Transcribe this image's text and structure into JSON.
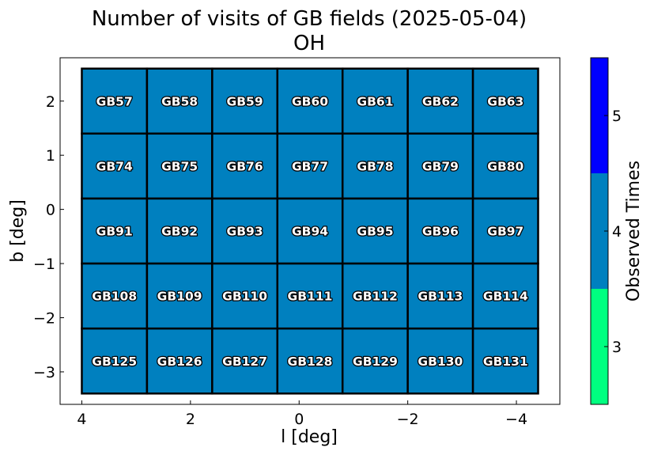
{
  "chart_data": {
    "type": "heatmap",
    "title": "Number of visits of GB fields (2025-05-04)",
    "subtitle": "OH",
    "xlabel": "l [deg]",
    "ylabel": "b [deg]",
    "xlim": [
      4.4,
      -4.8
    ],
    "ylim": [
      -3.6,
      2.8
    ],
    "x_reversed": true,
    "x_ticks": [
      4,
      2,
      0,
      -2,
      -4
    ],
    "x_tick_labels": [
      "4",
      "2",
      "0",
      "−2",
      "−4"
    ],
    "y_ticks": [
      2,
      1,
      0,
      -1,
      -2,
      -3
    ],
    "y_tick_labels": [
      "2",
      "1",
      "0",
      "−1",
      "−2",
      "−3"
    ],
    "grid": false,
    "cell_width": 1.2,
    "cell_height": 1.2,
    "cells": [
      {
        "name": "GB57",
        "l": 3.4,
        "b": 2.0,
        "value": 4
      },
      {
        "name": "GB58",
        "l": 2.2,
        "b": 2.0,
        "value": 4
      },
      {
        "name": "GB59",
        "l": 1.0,
        "b": 2.0,
        "value": 4
      },
      {
        "name": "GB60",
        "l": -0.2,
        "b": 2.0,
        "value": 4
      },
      {
        "name": "GB61",
        "l": -1.4,
        "b": 2.0,
        "value": 4
      },
      {
        "name": "GB62",
        "l": -2.6,
        "b": 2.0,
        "value": 4
      },
      {
        "name": "GB63",
        "l": -3.8,
        "b": 2.0,
        "value": 4
      },
      {
        "name": "GB74",
        "l": 3.4,
        "b": 0.8,
        "value": 4
      },
      {
        "name": "GB75",
        "l": 2.2,
        "b": 0.8,
        "value": 4
      },
      {
        "name": "GB76",
        "l": 1.0,
        "b": 0.8,
        "value": 4
      },
      {
        "name": "GB77",
        "l": -0.2,
        "b": 0.8,
        "value": 4
      },
      {
        "name": "GB78",
        "l": -1.4,
        "b": 0.8,
        "value": 4
      },
      {
        "name": "GB79",
        "l": -2.6,
        "b": 0.8,
        "value": 4
      },
      {
        "name": "GB80",
        "l": -3.8,
        "b": 0.8,
        "value": 4
      },
      {
        "name": "GB91",
        "l": 3.4,
        "b": -0.4,
        "value": 4
      },
      {
        "name": "GB92",
        "l": 2.2,
        "b": -0.4,
        "value": 4
      },
      {
        "name": "GB93",
        "l": 1.0,
        "b": -0.4,
        "value": 4
      },
      {
        "name": "GB94",
        "l": -0.2,
        "b": -0.4,
        "value": 4
      },
      {
        "name": "GB95",
        "l": -1.4,
        "b": -0.4,
        "value": 4
      },
      {
        "name": "GB96",
        "l": -2.6,
        "b": -0.4,
        "value": 4
      },
      {
        "name": "GB97",
        "l": -3.8,
        "b": -0.4,
        "value": 4
      },
      {
        "name": "GB108",
        "l": 3.4,
        "b": -1.6,
        "value": 4
      },
      {
        "name": "GB109",
        "l": 2.2,
        "b": -1.6,
        "value": 4
      },
      {
        "name": "GB110",
        "l": 1.0,
        "b": -1.6,
        "value": 4
      },
      {
        "name": "GB111",
        "l": -0.2,
        "b": -1.6,
        "value": 4
      },
      {
        "name": "GB112",
        "l": -1.4,
        "b": -1.6,
        "value": 4
      },
      {
        "name": "GB113",
        "l": -2.6,
        "b": -1.6,
        "value": 4
      },
      {
        "name": "GB114",
        "l": -3.8,
        "b": -1.6,
        "value": 4
      },
      {
        "name": "GB125",
        "l": 3.4,
        "b": -2.8,
        "value": 4
      },
      {
        "name": "GB126",
        "l": 2.2,
        "b": -2.8,
        "value": 4
      },
      {
        "name": "GB127",
        "l": 1.0,
        "b": -2.8,
        "value": 4
      },
      {
        "name": "GB128",
        "l": -0.2,
        "b": -2.8,
        "value": 4
      },
      {
        "name": "GB129",
        "l": -1.4,
        "b": -2.8,
        "value": 4
      },
      {
        "name": "GB130",
        "l": -2.6,
        "b": -2.8,
        "value": 4
      },
      {
        "name": "GB131",
        "l": -3.8,
        "b": -2.8,
        "value": 4
      }
    ],
    "colorbar": {
      "label": "Observed Times",
      "range": [
        2.5,
        5.5
      ],
      "ticks": [
        3,
        4,
        5
      ],
      "tick_labels": [
        "3",
        "4",
        "5"
      ],
      "bins": [
        {
          "from": 2.5,
          "to": 3.5,
          "value": 3,
          "color": "#00ff80"
        },
        {
          "from": 3.5,
          "to": 4.5,
          "value": 4,
          "color": "#0080bf"
        },
        {
          "from": 4.5,
          "to": 5.5,
          "value": 5,
          "color": "#0000ff"
        }
      ]
    }
  }
}
